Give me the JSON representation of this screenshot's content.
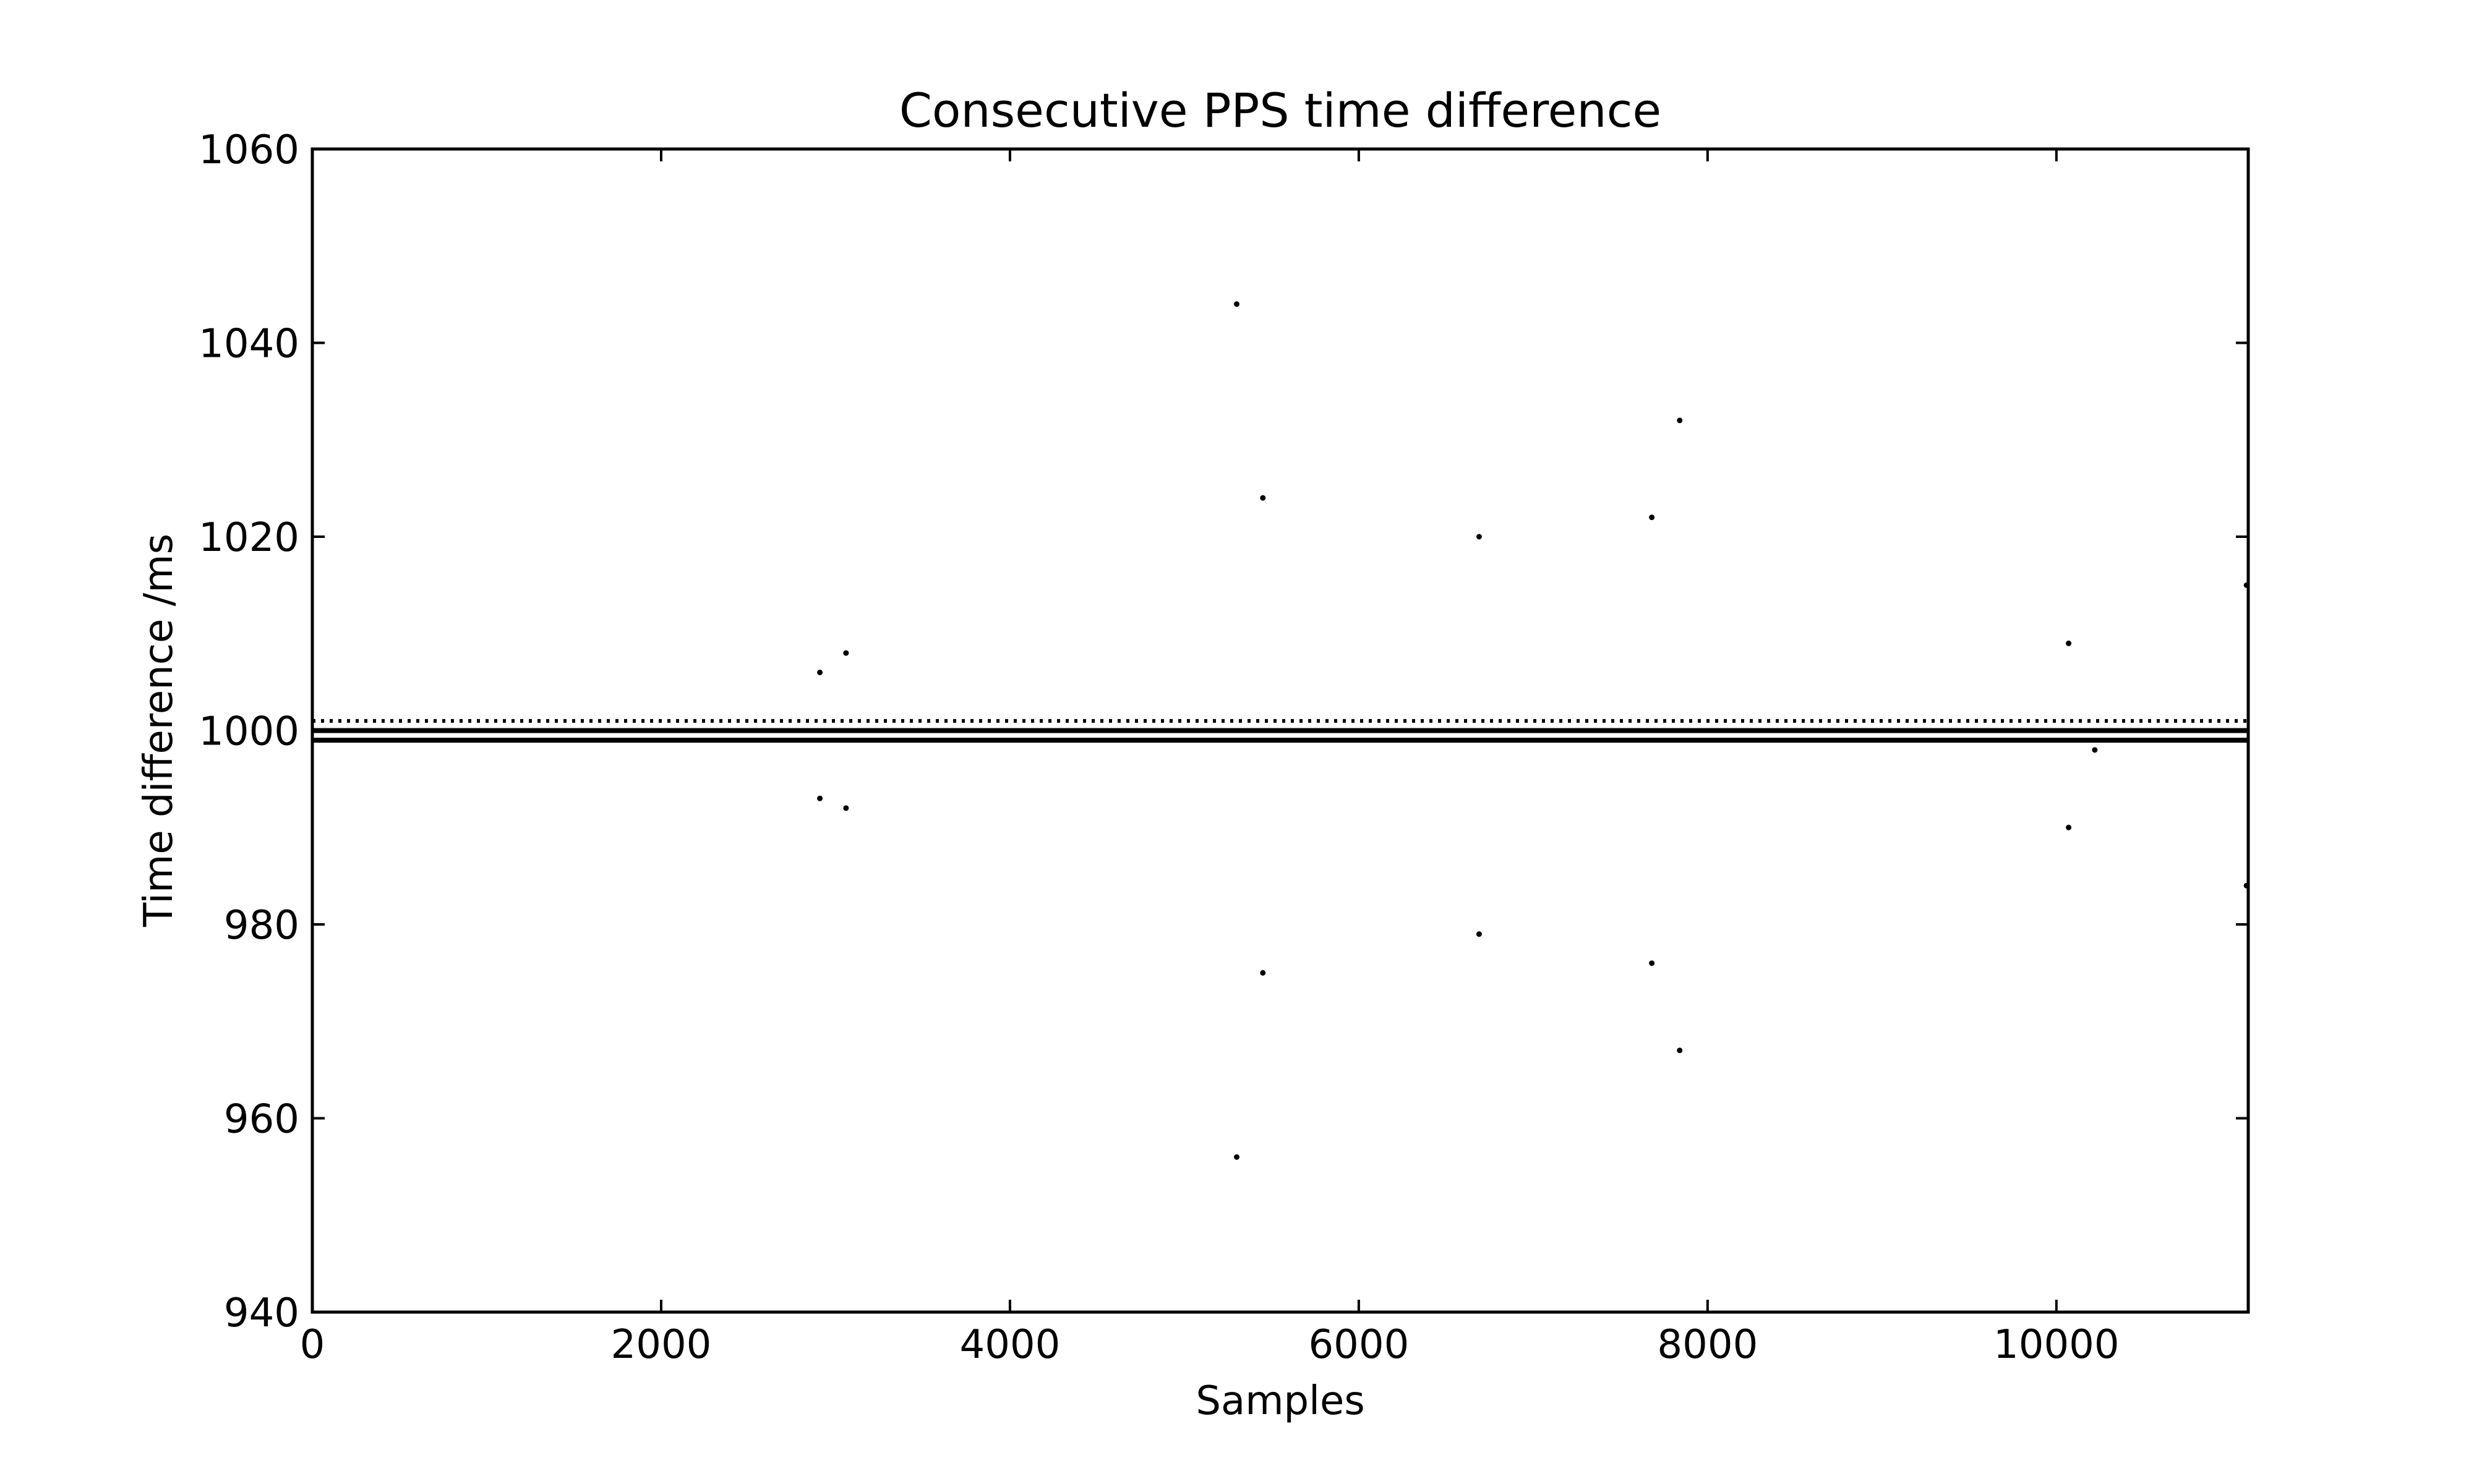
{
  "chart_data": {
    "type": "scatter",
    "title": "Consecutive PPS time difference",
    "xlabel": "Samples",
    "ylabel": "Time difference /ms",
    "xlim": [
      0,
      11100
    ],
    "ylim": [
      940,
      1060
    ],
    "grid": false,
    "legend": "none",
    "x_ticks": [
      0,
      2000,
      4000,
      6000,
      8000,
      10000
    ],
    "x_tick_labels": [
      "0",
      "2000",
      "4000",
      "6000",
      "8000",
      "10000"
    ],
    "y_ticks": [
      940,
      960,
      980,
      1000,
      1020,
      1040,
      1060
    ],
    "y_tick_labels": [
      "940",
      "960",
      "980",
      "1000",
      "1020",
      "1040",
      "1060"
    ],
    "series": [
      {
        "marker_color": "#000000",
        "dense_levels": [
          {
            "y": 999,
            "x_range": [
              0,
              11100
            ]
          },
          {
            "y": 1000,
            "x_range": [
              0,
              11100
            ]
          }
        ],
        "intermittent_level": {
          "y": 1001,
          "x_range": [
            0,
            11100
          ]
        },
        "points": [
          {
            "x": 2910,
            "y": 1006
          },
          {
            "x": 2910,
            "y": 993
          },
          {
            "x": 3060,
            "y": 1008
          },
          {
            "x": 3060,
            "y": 992
          },
          {
            "x": 5300,
            "y": 1044
          },
          {
            "x": 5300,
            "y": 956
          },
          {
            "x": 5450,
            "y": 1024
          },
          {
            "x": 5450,
            "y": 975
          },
          {
            "x": 6690,
            "y": 1020
          },
          {
            "x": 6690,
            "y": 979
          },
          {
            "x": 7680,
            "y": 1022
          },
          {
            "x": 7680,
            "y": 976
          },
          {
            "x": 7840,
            "y": 1032
          },
          {
            "x": 7840,
            "y": 967
          },
          {
            "x": 10070,
            "y": 1009
          },
          {
            "x": 10070,
            "y": 990
          },
          {
            "x": 10220,
            "y": 998
          },
          {
            "x": 11090,
            "y": 1015
          },
          {
            "x": 11090,
            "y": 984
          }
        ]
      }
    ]
  }
}
